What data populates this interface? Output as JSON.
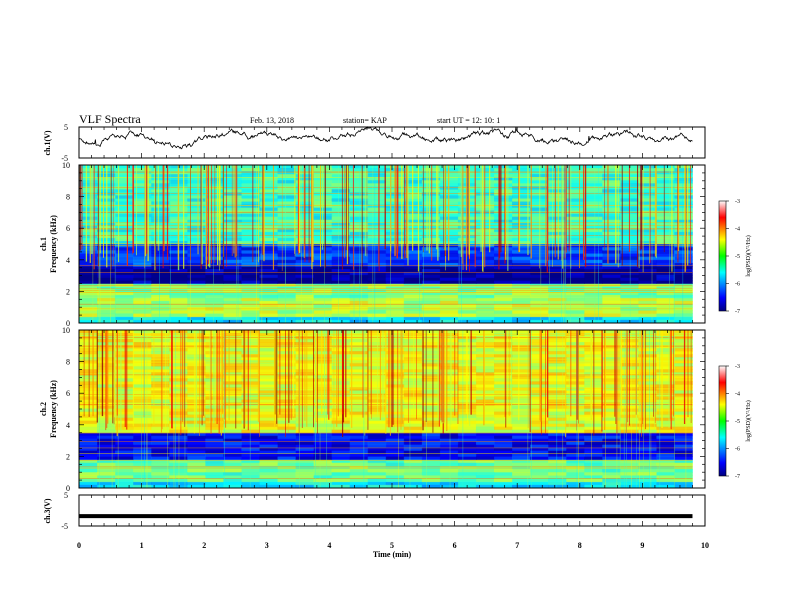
{
  "header": {
    "title": "VLF Spectra",
    "date": "Feb. 13, 2018",
    "station": "station= KAP",
    "start_ut": "start  UT =  12: 10: 1"
  },
  "chart_data": {
    "type": "heatmap",
    "xlabel": "Time  (min)",
    "x_ticks": [
      0,
      1,
      2,
      3,
      4,
      5,
      6,
      7,
      8,
      9,
      10
    ],
    "xlim": [
      0,
      10
    ],
    "data_end_min": 9.8,
    "panels": [
      {
        "id": "ch1-waveform",
        "type": "line",
        "ylabel": "ch.1(V)",
        "ylim": [
          -5,
          5
        ],
        "y_ticks": [
          5,
          -5
        ],
        "approx_level_V": 1.5
      },
      {
        "id": "ch1-spectrogram",
        "type": "heatmap",
        "ylabel_line1": "ch.1",
        "ylabel_line2": "Frequency  (kHz)",
        "ylim": [
          0,
          10
        ],
        "y_ticks": [
          0,
          2,
          4,
          6,
          8,
          10
        ],
        "colorbar": {
          "label": "log(PSD)(V²/Hz)",
          "ticks": [
            -3,
            -4,
            -5,
            -6,
            -7
          ],
          "range": [
            -7,
            -3
          ]
        },
        "bands": [
          {
            "from": 0,
            "to": 0.4,
            "level": -5.6
          },
          {
            "from": 0.4,
            "to": 1.6,
            "level": -4.8
          },
          {
            "from": 1.6,
            "to": 2.5,
            "level": -5.0
          },
          {
            "from": 2.5,
            "to": 3.6,
            "level": -6.9
          },
          {
            "from": 3.6,
            "to": 5.0,
            "level": -6.3
          },
          {
            "from": 5.0,
            "to": 10,
            "level": -5.3
          }
        ]
      },
      {
        "id": "ch2-spectrogram",
        "type": "heatmap",
        "ylabel_line1": "ch.2",
        "ylabel_line2": "Frequency  (kHz)",
        "ylim": [
          0,
          10
        ],
        "y_ticks": [
          0,
          2,
          4,
          6,
          8,
          10
        ],
        "colorbar": {
          "label": "log(PSD)(V²/Hz)",
          "ticks": [
            -3,
            -4,
            -5,
            -6,
            -7
          ],
          "range": [
            -7,
            -3
          ]
        },
        "bands": [
          {
            "from": 0,
            "to": 0.4,
            "level": -5.6
          },
          {
            "from": 0.4,
            "to": 1.8,
            "level": -5.1
          },
          {
            "from": 1.8,
            "to": 3.5,
            "level": -6.5
          },
          {
            "from": 3.5,
            "to": 10,
            "level": -4.6
          }
        ]
      },
      {
        "id": "ch3-waveform",
        "type": "line",
        "ylabel": "ch.3(V)",
        "ylim": [
          -5,
          5
        ],
        "y_ticks": [
          5,
          -5
        ],
        "approx_level_V": -1.8
      }
    ]
  }
}
